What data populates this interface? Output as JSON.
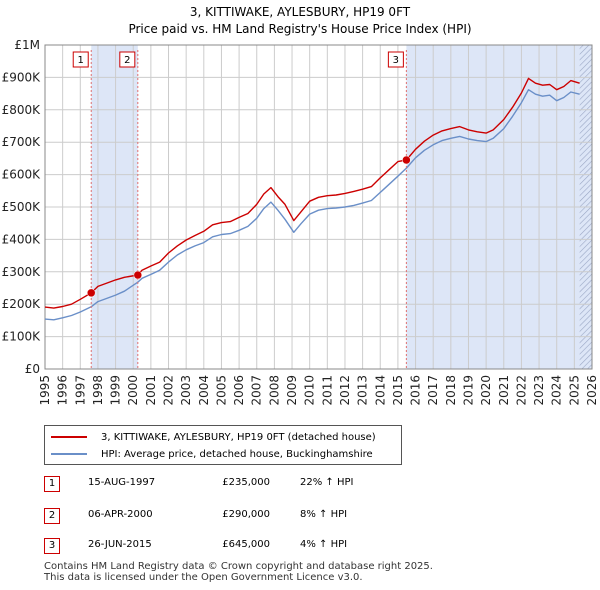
{
  "title": {
    "line1": "3, KITTIWAKE, AYLESBURY, HP19 0FT",
    "line2": "Price paid vs. HM Land Registry's House Price Index (HPI)"
  },
  "colors": {
    "price_line": "#cc0000",
    "hpi_line": "#6a8fc8",
    "shade": "#dde6f7",
    "hatch": "#9aa6c4",
    "marker_border": "#cc0000",
    "grid": "#cccccc"
  },
  "chart_data": {
    "type": "line",
    "xlabel": "",
    "ylabel": "",
    "xlim": [
      1995,
      2026
    ],
    "ylim": [
      0,
      1000000
    ],
    "x_ticks": [
      1995,
      1996,
      1997,
      1998,
      1999,
      2000,
      2001,
      2002,
      2003,
      2004,
      2005,
      2006,
      2007,
      2008,
      2009,
      2010,
      2011,
      2012,
      2013,
      2014,
      2015,
      2016,
      2017,
      2018,
      2019,
      2020,
      2021,
      2022,
      2023,
      2024,
      2025,
      2026
    ],
    "y_ticks": [
      {
        "value": 0,
        "label": "£0"
      },
      {
        "value": 100000,
        "label": "£100K"
      },
      {
        "value": 200000,
        "label": "£200K"
      },
      {
        "value": 300000,
        "label": "£300K"
      },
      {
        "value": 400000,
        "label": "£400K"
      },
      {
        "value": 500000,
        "label": "£500K"
      },
      {
        "value": 600000,
        "label": "£600K"
      },
      {
        "value": 700000,
        "label": "£700K"
      },
      {
        "value": 800000,
        "label": "£800K"
      },
      {
        "value": 900000,
        "label": "£900K"
      },
      {
        "value": 1000000,
        "label": "£1M"
      }
    ],
    "grid": true,
    "shaded_ranges": [
      [
        1997.62,
        2000.26
      ],
      [
        2015.48,
        2026
      ]
    ],
    "data_end": 2025.3,
    "series": [
      {
        "name": "3, KITTIWAKE, AYLESBURY, HP19 0FT (detached house)",
        "color": "#cc0000",
        "x": [
          1995,
          1995.5,
          1996,
          1996.5,
          1997,
          1997.62,
          1998,
          1998.5,
          1999,
          1999.5,
          2000.26,
          2000.5,
          2001,
          2001.5,
          2002,
          2002.5,
          2003,
          2003.5,
          2004,
          2004.5,
          2005,
          2005.5,
          2006,
          2006.5,
          2007,
          2007.4,
          2007.8,
          2008.2,
          2008.6,
          2009.1,
          2009.5,
          2010,
          2010.5,
          2011,
          2011.5,
          2012,
          2012.5,
          2013,
          2013.5,
          2014,
          2014.5,
          2015,
          2015.48,
          2016,
          2016.5,
          2017,
          2017.5,
          2018,
          2018.5,
          2019,
          2019.5,
          2020,
          2020.4,
          2021,
          2021.5,
          2022,
          2022.4,
          2022.8,
          2023.2,
          2023.6,
          2024,
          2024.4,
          2024.8,
          2025.3
        ],
        "values": [
          191000,
          188000,
          193000,
          200000,
          215000,
          235000,
          255000,
          265000,
          275000,
          283000,
          290000,
          305000,
          318000,
          330000,
          358000,
          380000,
          398000,
          412000,
          425000,
          445000,
          452000,
          455000,
          468000,
          480000,
          508000,
          540000,
          560000,
          532000,
          508000,
          458000,
          485000,
          518000,
          530000,
          535000,
          537000,
          542000,
          548000,
          555000,
          563000,
          590000,
          615000,
          640000,
          645000,
          678000,
          703000,
          722000,
          735000,
          742000,
          748000,
          738000,
          732000,
          728000,
          738000,
          770000,
          808000,
          852000,
          897000,
          882000,
          876000,
          878000,
          862000,
          872000,
          890000,
          882000
        ]
      },
      {
        "name": "HPI: Average price, detached house, Buckinghamshire",
        "color": "#6a8fc8",
        "x": [
          1995,
          1995.5,
          1996,
          1996.5,
          1997,
          1997.62,
          1998,
          1998.5,
          1999,
          1999.5,
          2000.26,
          2000.5,
          2001,
          2001.5,
          2002,
          2002.5,
          2003,
          2003.5,
          2004,
          2004.5,
          2005,
          2005.5,
          2006,
          2006.5,
          2007,
          2007.4,
          2007.8,
          2008.2,
          2008.6,
          2009.1,
          2009.5,
          2010,
          2010.5,
          2011,
          2011.5,
          2012,
          2012.5,
          2013,
          2013.5,
          2014,
          2014.5,
          2015,
          2015.48,
          2016,
          2016.5,
          2017,
          2017.5,
          2018,
          2018.5,
          2019,
          2019.5,
          2020,
          2020.4,
          2021,
          2021.5,
          2022,
          2022.4,
          2022.8,
          2023.2,
          2023.6,
          2024,
          2024.4,
          2024.8,
          2025.3
        ],
        "values": [
          154000,
          152000,
          158000,
          165000,
          176000,
          192000,
          208000,
          218000,
          228000,
          240000,
          268000,
          280000,
          292000,
          305000,
          330000,
          352000,
          368000,
          380000,
          390000,
          408000,
          415000,
          418000,
          428000,
          440000,
          465000,
          495000,
          515000,
          490000,
          462000,
          422000,
          448000,
          478000,
          490000,
          495000,
          497000,
          500000,
          505000,
          512000,
          520000,
          545000,
          570000,
          595000,
          620000,
          652000,
          675000,
          692000,
          705000,
          712000,
          718000,
          710000,
          705000,
          702000,
          712000,
          742000,
          780000,
          822000,
          862000,
          848000,
          842000,
          845000,
          828000,
          838000,
          855000,
          848000
        ]
      }
    ],
    "markers": [
      {
        "label": "1",
        "x": 1997.62,
        "value": 235000
      },
      {
        "label": "2",
        "x": 2000.26,
        "value": 290000
      },
      {
        "label": "3",
        "x": 2015.48,
        "value": 645000
      }
    ]
  },
  "legend": {
    "price_label": "3, KITTIWAKE, AYLESBURY, HP19 0FT (detached house)",
    "hpi_label": "HPI: Average price, detached house, Buckinghamshire"
  },
  "sales": [
    {
      "num": "1",
      "date": "15-AUG-1997",
      "price": "£235,000",
      "hpi": "22% ↑ HPI"
    },
    {
      "num": "2",
      "date": "06-APR-2000",
      "price": "£290,000",
      "hpi": "8% ↑ HPI"
    },
    {
      "num": "3",
      "date": "26-JUN-2015",
      "price": "£645,000",
      "hpi": "4% ↑ HPI"
    }
  ],
  "footer": {
    "line1": "Contains HM Land Registry data © Crown copyright and database right 2025.",
    "line2": "This data is licensed under the Open Government Licence v3.0."
  }
}
